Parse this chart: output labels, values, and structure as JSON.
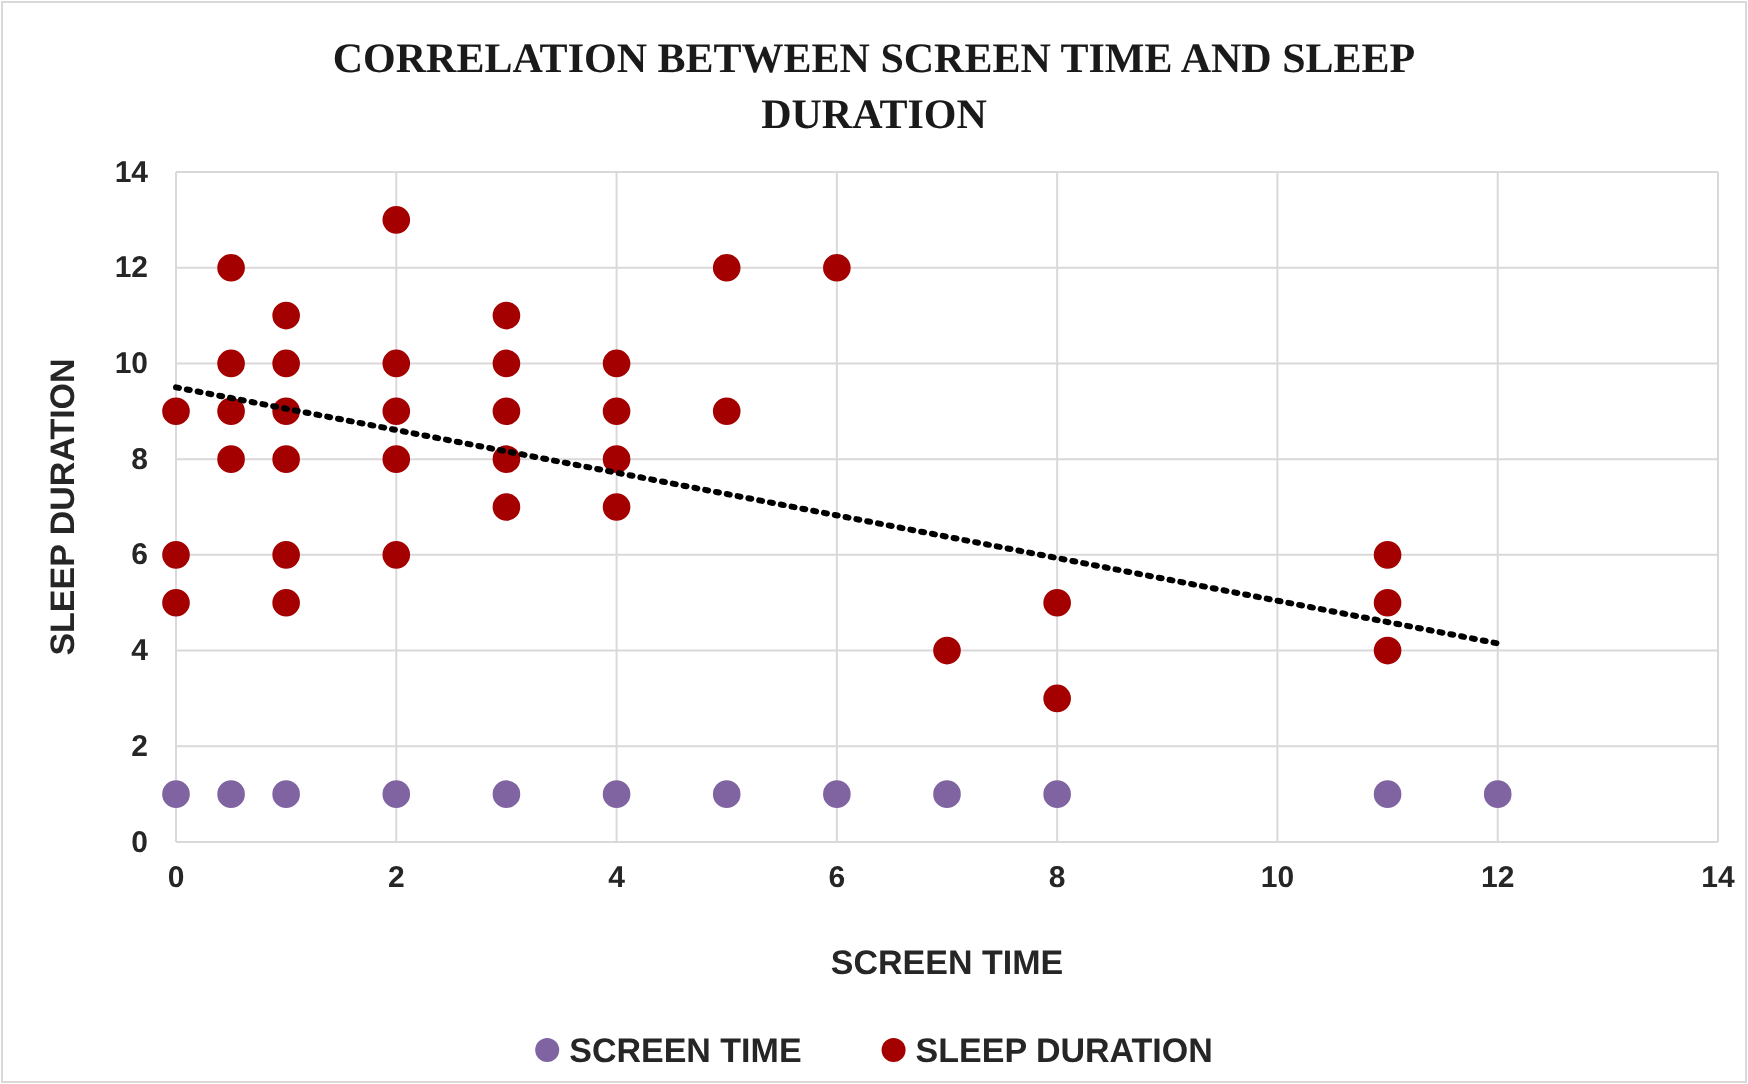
{
  "chart_data": {
    "type": "scatter",
    "title": "CORRELATION BETWEEN SCREEN TIME AND SLEEP DURATION",
    "xlabel": "SCREEN TIME",
    "ylabel": "SLEEP DURATION",
    "xlim": [
      0,
      14
    ],
    "xticks": [
      0,
      2,
      4,
      6,
      8,
      10,
      12,
      14
    ],
    "ylim": [
      0,
      14
    ],
    "yticks": [
      0,
      2,
      4,
      6,
      8,
      10,
      12,
      14
    ],
    "grid": true,
    "legend": "bottom",
    "marker": "circle",
    "series": [
      {
        "name": "SCREEN TIME",
        "color": "#8064a2",
        "x": [
          0,
          0.5,
          1,
          2,
          3,
          4,
          5,
          6,
          7,
          8,
          11,
          12
        ],
        "values": [
          1,
          1,
          1,
          1,
          1,
          1,
          1,
          1,
          1,
          1,
          1,
          1
        ]
      },
      {
        "name": "SLEEP DURATION",
        "color": "#a50000",
        "x": [
          0,
          0,
          0,
          0.5,
          0.5,
          0.5,
          0.5,
          1,
          1,
          1,
          1,
          1,
          1,
          2,
          2,
          2,
          2,
          2,
          3,
          3,
          3,
          3,
          3,
          4,
          4,
          4,
          4,
          5,
          5,
          6,
          7,
          8,
          8,
          11,
          11,
          11
        ],
        "values": [
          9,
          6,
          5,
          12,
          10,
          9,
          8,
          11,
          10,
          9,
          8,
          6,
          5,
          13,
          10,
          9,
          8,
          6,
          11,
          10,
          9,
          8,
          7,
          10,
          9,
          8,
          7,
          12,
          9,
          12,
          4,
          5,
          3,
          6,
          5,
          4
        ]
      },
      {
        "type": "line",
        "color": "#000000",
        "line_style": "dotted",
        "marker": "none",
        "x": [
          0,
          12
        ],
        "values": [
          9.5,
          4.15
        ]
      }
    ]
  }
}
